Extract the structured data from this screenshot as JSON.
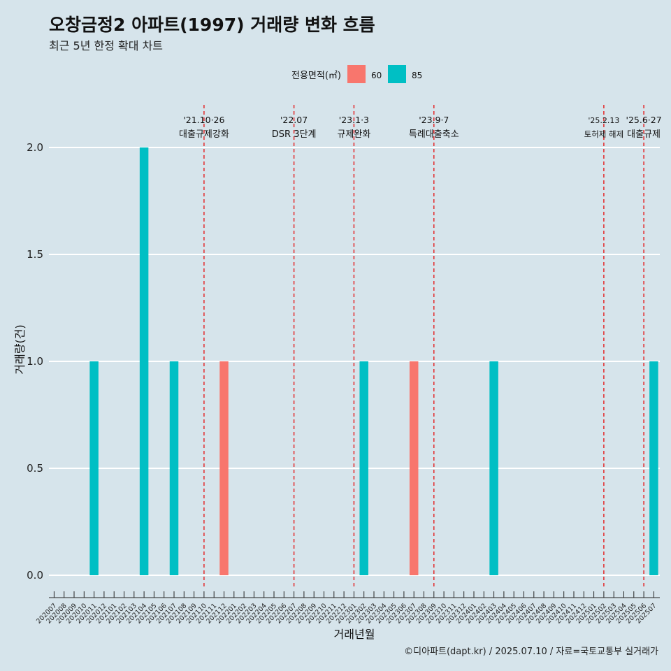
{
  "title": "오창금정2 아파트(1997) 거래량 변화 흐름",
  "subtitle": "최근 5년 한정 확대 차트",
  "caption": "©디아파트(dapt.kr) / 2025.07.10 / 자료=국토교통부 실거래가",
  "legend": {
    "title": "전용면적(㎡)",
    "items": [
      {
        "label": "60",
        "color": "#f8766d"
      },
      {
        "label": "85",
        "color": "#00bfc4"
      }
    ]
  },
  "chart_data": {
    "type": "bar",
    "xlabel": "거래년월",
    "ylabel": "거래량(건)",
    "ylim": [
      0,
      2.0
    ],
    "yticks": [
      0.0,
      0.5,
      1.0,
      1.5,
      2.0
    ],
    "ytick_labels": [
      "0.0",
      "0.5",
      "1.0",
      "1.5",
      "2.0"
    ],
    "grid": true,
    "legend_position": "top",
    "categories": [
      "202007",
      "202008",
      "202009",
      "202010",
      "202011",
      "202012",
      "202101",
      "202102",
      "202103",
      "202104",
      "202105",
      "202106",
      "202107",
      "202108",
      "202109",
      "202110",
      "202111",
      "202112",
      "202201",
      "202202",
      "202203",
      "202204",
      "202205",
      "202206",
      "202207",
      "202208",
      "202209",
      "202210",
      "202211",
      "202212",
      "202301",
      "202302",
      "202303",
      "202304",
      "202305",
      "202306",
      "202307",
      "202308",
      "202309",
      "202310",
      "202311",
      "202312",
      "202401",
      "202402",
      "202403",
      "202404",
      "202405",
      "202406",
      "202407",
      "202408",
      "202409",
      "202410",
      "202411",
      "202412",
      "202501",
      "202502",
      "202503",
      "202504",
      "202505",
      "202506",
      "202507"
    ],
    "series": [
      {
        "name": "60",
        "color": "#f8766d",
        "points": [
          {
            "x": "202112",
            "y": 1
          },
          {
            "x": "202307",
            "y": 1
          }
        ]
      },
      {
        "name": "85",
        "color": "#00bfc4",
        "points": [
          {
            "x": "202011",
            "y": 1
          },
          {
            "x": "202104",
            "y": 2
          },
          {
            "x": "202107",
            "y": 1
          },
          {
            "x": "202302",
            "y": 1
          },
          {
            "x": "202403",
            "y": 1
          },
          {
            "x": "202507",
            "y": 1
          }
        ]
      }
    ],
    "annotations": [
      {
        "x": "202110",
        "date": "'21.10·26",
        "label": "대출규제강화",
        "color": "#e41a1c"
      },
      {
        "x": "202207",
        "date": "'22.07",
        "label": "DSR 3단계",
        "color": "#e41a1c"
      },
      {
        "x": "202301",
        "date": "'23.1·3",
        "label": "규제완화",
        "color": "#e41a1c"
      },
      {
        "x": "202309",
        "date": "'23.9·7",
        "label": "특례대출축소",
        "color": "#e41a1c"
      },
      {
        "x": "202502",
        "date": "'25.2.13",
        "label": "토허제 해제",
        "color": "#e41a1c"
      },
      {
        "x": "202506",
        "date": "'25.6·27",
        "label": "대출규제",
        "color": "#e41a1c"
      }
    ]
  }
}
